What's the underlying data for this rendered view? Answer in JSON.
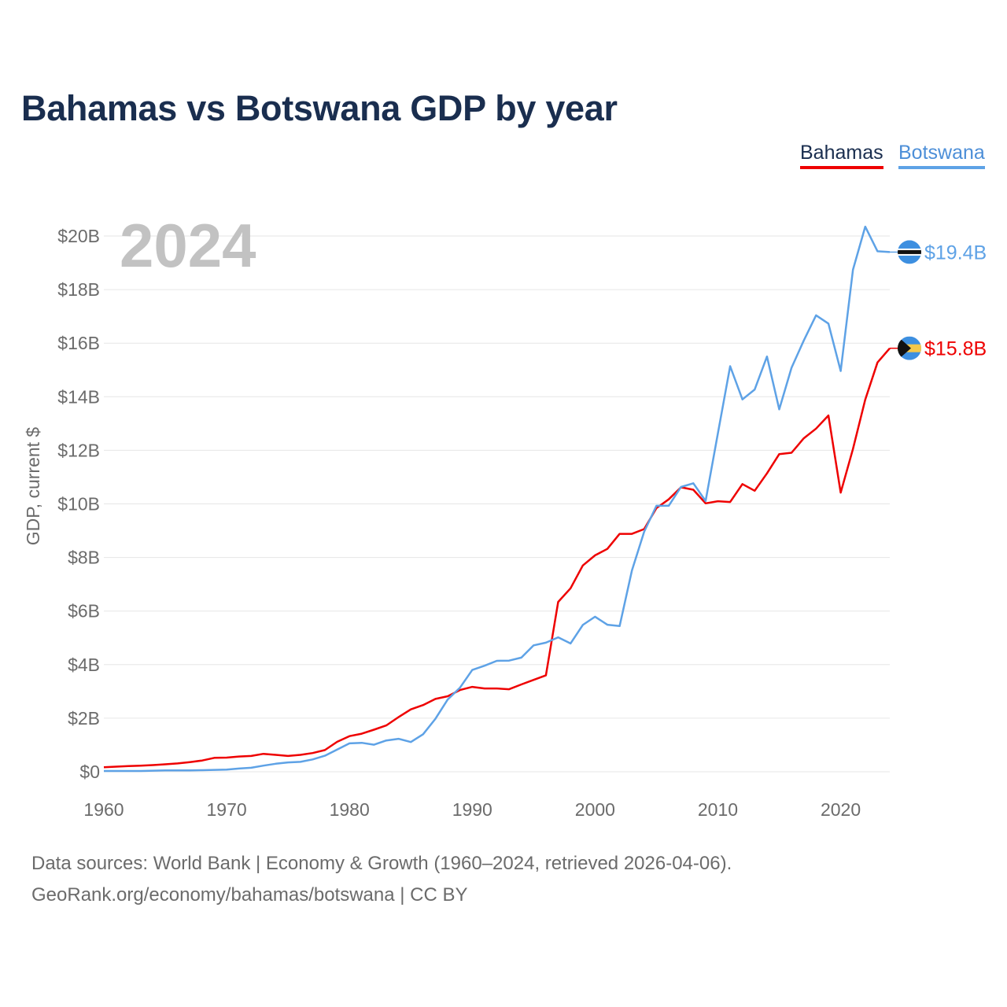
{
  "title": "Bahamas vs Botswana GDP by year",
  "legend": {
    "bahamas": "Bahamas",
    "botswana": "Botswana"
  },
  "year_watermark": "2024",
  "footer": {
    "source": "Data sources: World Bank | Economy & Growth (1960–2024, retrieved 2026-04-06).",
    "url": "GeoRank.org/economy/bahamas/botswana | CC BY"
  },
  "colors": {
    "bahamas": "#ee0000",
    "botswana": "#5ea2e6",
    "title": "#1a2e4f",
    "axis_text": "#6b6b6b",
    "grid": "#e6e6e6"
  },
  "chart_data": {
    "type": "line",
    "title": "Bahamas vs Botswana GDP by year",
    "xlabel": "",
    "ylabel": "GDP, current $",
    "xlim": [
      1960,
      2024
    ],
    "ylim": [
      0,
      20
    ],
    "y_unit": "billions USD",
    "x_ticks": [
      1960,
      1970,
      1980,
      1990,
      2000,
      2010,
      2020
    ],
    "x_tick_labels": [
      "1960",
      "1970",
      "1980",
      "1990",
      "2000",
      "2010",
      "2020"
    ],
    "y_ticks": [
      0,
      2,
      4,
      6,
      8,
      10,
      12,
      14,
      16,
      18,
      20
    ],
    "y_tick_labels": [
      "$0",
      "$2B",
      "$4B",
      "$6B",
      "$8B",
      "$10B",
      "$12B",
      "$14B",
      "$16B",
      "$18B",
      "$20B"
    ],
    "x": [
      1960,
      1961,
      1962,
      1963,
      1964,
      1965,
      1966,
      1967,
      1968,
      1969,
      1970,
      1971,
      1972,
      1973,
      1974,
      1975,
      1976,
      1977,
      1978,
      1979,
      1980,
      1981,
      1982,
      1983,
      1984,
      1985,
      1986,
      1987,
      1988,
      1989,
      1990,
      1991,
      1992,
      1993,
      1994,
      1995,
      1996,
      1997,
      1998,
      1999,
      2000,
      2001,
      2002,
      2003,
      2004,
      2005,
      2006,
      2007,
      2008,
      2009,
      2010,
      2011,
      2012,
      2013,
      2014,
      2015,
      2016,
      2017,
      2018,
      2019,
      2020,
      2021,
      2022,
      2023,
      2024
    ],
    "series": [
      {
        "name": "Bahamas",
        "color": "#ee0000",
        "end_label": "$15.8B",
        "values": [
          0.17,
          0.19,
          0.21,
          0.23,
          0.25,
          0.28,
          0.31,
          0.36,
          0.42,
          0.52,
          0.53,
          0.57,
          0.59,
          0.67,
          0.63,
          0.59,
          0.63,
          0.7,
          0.81,
          1.12,
          1.33,
          1.42,
          1.57,
          1.73,
          2.04,
          2.33,
          2.49,
          2.72,
          2.82,
          3.05,
          3.17,
          3.11,
          3.11,
          3.08,
          3.26,
          3.43,
          3.6,
          6.34,
          6.85,
          7.7,
          8.08,
          8.32,
          8.88,
          8.88,
          9.06,
          9.84,
          10.17,
          10.62,
          10.53,
          10.02,
          10.1,
          10.07,
          10.74,
          10.49,
          11.14,
          11.86,
          11.91,
          12.45,
          12.81,
          13.3,
          10.42,
          12.05,
          13.89,
          15.28,
          15.81
        ]
      },
      {
        "name": "Botswana",
        "color": "#5ea2e6",
        "end_label": "$19.4B",
        "values": [
          0.03,
          0.03,
          0.03,
          0.03,
          0.04,
          0.05,
          0.05,
          0.05,
          0.06,
          0.07,
          0.08,
          0.12,
          0.15,
          0.23,
          0.3,
          0.35,
          0.37,
          0.46,
          0.6,
          0.83,
          1.06,
          1.08,
          1.01,
          1.17,
          1.23,
          1.11,
          1.4,
          1.98,
          2.7,
          3.14,
          3.8,
          3.96,
          4.14,
          4.15,
          4.26,
          4.72,
          4.82,
          5.02,
          4.79,
          5.48,
          5.79,
          5.49,
          5.44,
          7.51,
          8.96,
          9.93,
          9.93,
          10.63,
          10.77,
          10.11,
          12.63,
          15.14,
          13.9,
          14.27,
          15.5,
          13.53,
          15.08,
          16.1,
          17.04,
          16.73,
          14.96,
          18.74,
          20.35,
          19.43,
          19.4
        ]
      }
    ]
  }
}
